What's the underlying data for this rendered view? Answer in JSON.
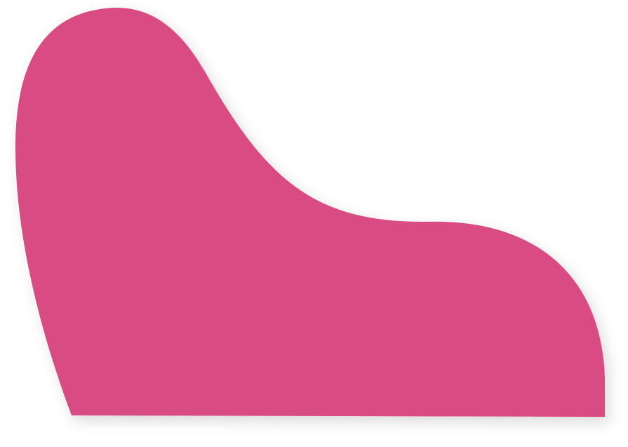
{
  "shape": {
    "name": "pink-blob",
    "fill_color": "#D94B83",
    "shadow_color": "#000000"
  },
  "background": {
    "color": "#FFFFFF"
  }
}
